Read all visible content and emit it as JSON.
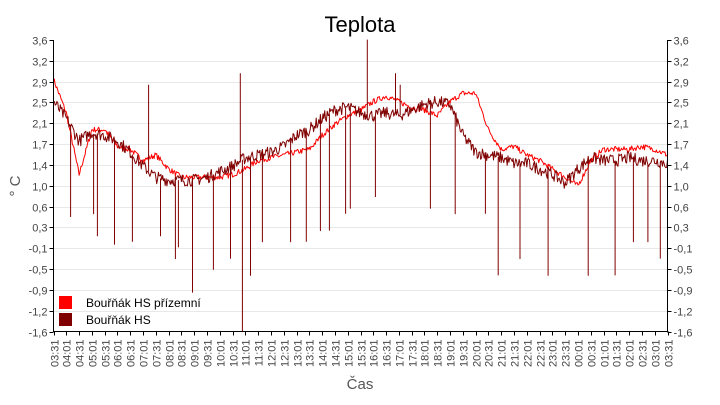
{
  "chart_data": {
    "type": "line",
    "title": "Teplota",
    "xlabel": "Čas",
    "ylabel": "° C",
    "ylim": [
      -1.6,
      3.6
    ],
    "y_ticks": [
      "3,6",
      "3,2",
      "2,9",
      "2,5",
      "2,1",
      "1,7",
      "1,4",
      "1,0",
      "0,6",
      "0,3",
      "-0,1",
      "-0,5",
      "-0,9",
      "-1,2",
      "-1,6"
    ],
    "x_ticks": [
      "03:31",
      "04:01",
      "04:31",
      "05:01",
      "05:31",
      "06:01",
      "06:31",
      "07:01",
      "07:31",
      "08:01",
      "08:31",
      "09:01",
      "09:31",
      "10:01",
      "10:31",
      "11:01",
      "11:31",
      "12:01",
      "12:31",
      "13:01",
      "13:31",
      "14:01",
      "14:31",
      "15:01",
      "15:31",
      "16:01",
      "16:31",
      "17:01",
      "17:31",
      "18:01",
      "18:31",
      "19:01",
      "19:31",
      "20:01",
      "20:31",
      "21:01",
      "21:31",
      "22:01",
      "22:31",
      "23:01",
      "23:31",
      "00:01",
      "00:31",
      "01:01",
      "01:31",
      "02:01",
      "02:31",
      "03:01",
      "03:31"
    ],
    "grid": true,
    "legend_position": "bottom-left",
    "series": [
      {
        "name": "Bouřňák HS přízemní",
        "color": "#ff0000",
        "values": [
          2.9,
          2.3,
          1.2,
          2.0,
          2.0,
          1.7,
          1.65,
          1.45,
          1.55,
          1.3,
          1.15,
          1.15,
          1.15,
          1.15,
          1.2,
          1.3,
          1.45,
          1.5,
          1.55,
          1.6,
          1.65,
          1.9,
          2.1,
          2.25,
          2.35,
          2.5,
          2.6,
          2.5,
          2.4,
          2.35,
          2.25,
          2.5,
          2.65,
          2.65,
          2.0,
          1.65,
          1.7,
          1.55,
          1.45,
          1.3,
          1.15,
          1.0,
          1.45,
          1.65,
          1.65,
          1.65,
          1.7,
          1.65,
          1.55
        ]
      },
      {
        "name": "Bouřňák HS",
        "color": "#800000",
        "values": [
          2.5,
          2.2,
          1.8,
          1.95,
          1.9,
          1.8,
          1.6,
          1.35,
          1.15,
          1.1,
          1.1,
          1.1,
          1.15,
          1.25,
          1.35,
          1.5,
          1.55,
          1.6,
          1.7,
          1.9,
          2.0,
          2.2,
          2.35,
          2.4,
          2.3,
          2.25,
          2.3,
          2.25,
          2.35,
          2.45,
          2.5,
          2.45,
          1.9,
          1.6,
          1.55,
          1.5,
          1.4,
          1.4,
          1.3,
          1.2,
          1.05,
          1.3,
          1.5,
          1.45,
          1.45,
          1.5,
          1.45,
          1.45,
          1.4
        ],
        "spikes": [
          [
            "04:11",
            0.45
          ],
          [
            "05:05",
            0.5
          ],
          [
            "05:14",
            0.1
          ],
          [
            "05:54",
            -0.05
          ],
          [
            "06:36",
            0.0
          ],
          [
            "07:14",
            2.8
          ],
          [
            "07:42",
            0.1
          ],
          [
            "08:17",
            -0.3
          ],
          [
            "08:24",
            -0.1
          ],
          [
            "08:57",
            -0.9
          ],
          [
            "09:46",
            -0.5
          ],
          [
            "10:26",
            -0.3
          ],
          [
            "10:49",
            3.0
          ],
          [
            "10:54",
            -1.6
          ],
          [
            "11:13",
            -0.6
          ],
          [
            "11:41",
            0.0
          ],
          [
            "12:47",
            0.0
          ],
          [
            "13:24",
            0.0
          ],
          [
            "13:57",
            0.2
          ],
          [
            "14:18",
            0.2
          ],
          [
            "14:56",
            0.5
          ],
          [
            "15:07",
            0.6
          ],
          [
            "15:47",
            3.6
          ],
          [
            "16:06",
            0.8
          ],
          [
            "16:53",
            3.0
          ],
          [
            "17:04",
            2.8
          ],
          [
            "18:15",
            0.6
          ],
          [
            "19:13",
            0.5
          ],
          [
            "20:24",
            0.5
          ],
          [
            "20:54",
            -0.6
          ],
          [
            "21:45",
            -0.3
          ],
          [
            "22:51",
            -0.6
          ],
          [
            "00:25",
            -0.6
          ],
          [
            "01:28",
            -0.6
          ],
          [
            "02:11",
            0.0
          ],
          [
            "02:45",
            0.0
          ],
          [
            "03:14",
            -0.3
          ]
        ]
      }
    ]
  }
}
